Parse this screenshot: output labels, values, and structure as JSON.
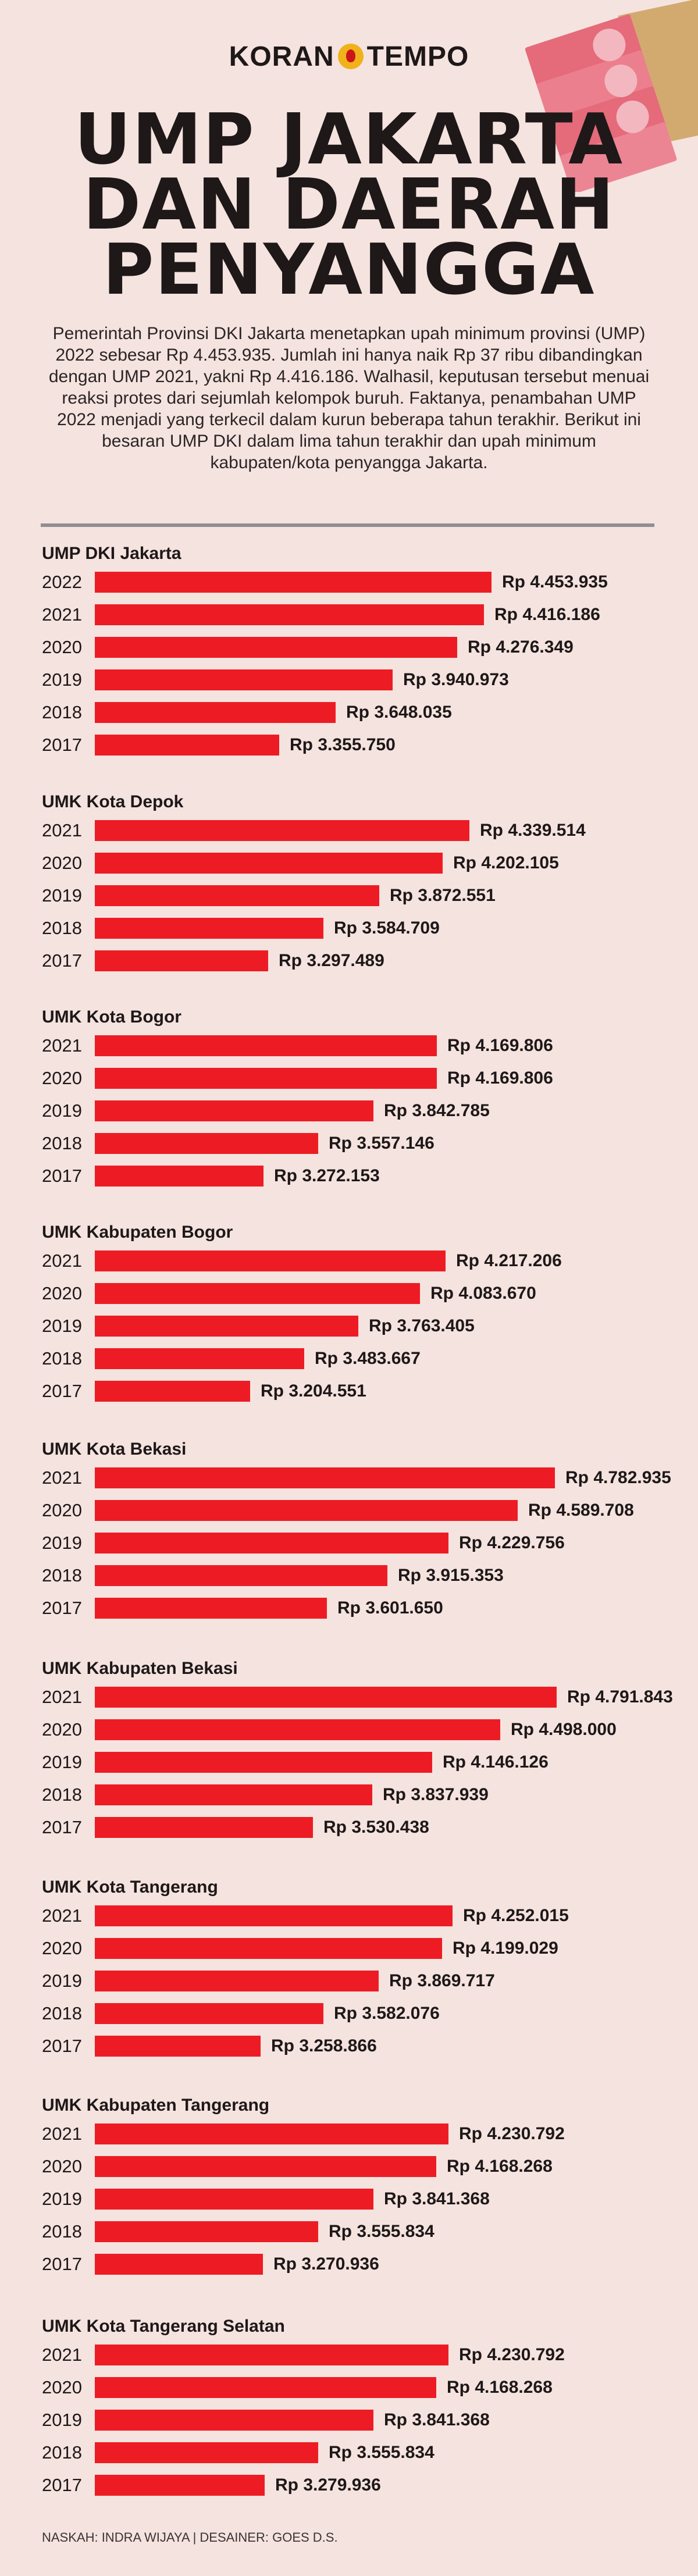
{
  "brand": {
    "left": "KORAN",
    "right": "TEMPO"
  },
  "title_lines": [
    "UMP JAKARTA",
    "DAN DAERAH",
    "PENYANGGA"
  ],
  "intro": "Pemerintah Provinsi DKI Jakarta menetapkan upah minimum provinsi (UMP) 2022 sebesar Rp 4.453.935. Jumlah ini hanya naik Rp 37 ribu dibandingkan dengan UMP 2021, yakni Rp 4.416.186. Walhasil, keputusan tersebut menuai reaksi protes dari sejumlah kelompok buruh. Faktanya, penambahan UMP 2022 menjadi yang terkecil dalam kurun beberapa tahun terakhir. Berikut ini besaran UMP DKI dalam lima tahun terakhir dan upah minimum kabupaten/kota penyangga Jakarta.",
  "credits": "NASKAH: INDRA WIJAYA | DESAINER: GOES D.S.",
  "colors": {
    "bar": "#ed1c24",
    "background": "#f5e3df",
    "text": "#1e1818"
  },
  "chart_data": [
    {
      "type": "bar",
      "orientation": "horizontal",
      "title": "UMP DKI Jakarta",
      "categories": [
        "2022",
        "2021",
        "2020",
        "2019",
        "2018",
        "2017"
      ],
      "values": [
        4453935,
        4416186,
        4276349,
        3940973,
        3648035,
        3355750
      ],
      "labels": [
        "Rp 4.453.935",
        "Rp 4.416.186",
        "Rp 4.276.349",
        "Rp 3.940.973",
        "Rp 3.648.035",
        "Rp 3.355.750"
      ]
    },
    {
      "type": "bar",
      "orientation": "horizontal",
      "title": "UMK Kota Depok",
      "categories": [
        "2021",
        "2020",
        "2019",
        "2018",
        "2017"
      ],
      "values": [
        4339514,
        4202105,
        3872551,
        3584709,
        3297489
      ],
      "labels": [
        "Rp 4.339.514",
        "Rp 4.202.105",
        "Rp 3.872.551",
        "Rp 3.584.709",
        "Rp 3.297.489"
      ]
    },
    {
      "type": "bar",
      "orientation": "horizontal",
      "title": "UMK Kota Bogor",
      "categories": [
        "2021",
        "2020",
        "2019",
        "2018",
        "2017"
      ],
      "values": [
        4169806,
        4169806,
        3842785,
        3557146,
        3272153
      ],
      "labels": [
        "Rp 4.169.806",
        "Rp 4.169.806",
        "Rp 3.842.785",
        "Rp 3.557.146",
        "Rp 3.272.153"
      ]
    },
    {
      "type": "bar",
      "orientation": "horizontal",
      "title": "UMK Kabupaten Bogor",
      "categories": [
        "2021",
        "2020",
        "2019",
        "2018",
        "2017"
      ],
      "values": [
        4217206,
        4083670,
        3763405,
        3483667,
        3204551
      ],
      "labels": [
        "Rp 4.217.206",
        "Rp 4.083.670",
        "Rp 3.763.405",
        "Rp 3.483.667",
        "Rp 3.204.551"
      ]
    },
    {
      "type": "bar",
      "orientation": "horizontal",
      "title": "UMK Kota Bekasi",
      "categories": [
        "2021",
        "2020",
        "2019",
        "2018",
        "2017"
      ],
      "values": [
        4782935,
        4589708,
        4229756,
        3915353,
        3601650
      ],
      "labels": [
        "Rp 4.782.935",
        "Rp 4.589.708",
        "Rp 4.229.756",
        "Rp 3.915.353",
        "Rp 3.601.650"
      ]
    },
    {
      "type": "bar",
      "orientation": "horizontal",
      "title": "UMK Kabupaten Bekasi",
      "categories": [
        "2021",
        "2020",
        "2019",
        "2018",
        "2017"
      ],
      "values": [
        4791843,
        4498000,
        4146126,
        3837939,
        3530438
      ],
      "labels": [
        "Rp 4.791.843",
        "Rp 4.498.000",
        "Rp 4.146.126",
        "Rp 3.837.939",
        "Rp 3.530.438"
      ]
    },
    {
      "type": "bar",
      "orientation": "horizontal",
      "title": "UMK Kota Tangerang",
      "categories": [
        "2021",
        "2020",
        "2019",
        "2018",
        "2017"
      ],
      "values": [
        4252015,
        4199029,
        3869717,
        3582076,
        3258866
      ],
      "labels": [
        "Rp 4.252.015",
        "Rp 4.199.029",
        "Rp 3.869.717",
        "Rp 3.582.076",
        "Rp 3.258.866"
      ]
    },
    {
      "type": "bar",
      "orientation": "horizontal",
      "title": "UMK Kabupaten Tangerang",
      "categories": [
        "2021",
        "2020",
        "2019",
        "2018",
        "2017"
      ],
      "values": [
        4230792,
        4168268,
        3841368,
        3555834,
        3270936
      ],
      "labels": [
        "Rp 4.230.792",
        "Rp 4.168.268",
        "Rp 3.841.368",
        "Rp 3.555.834",
        "Rp 3.270.936"
      ]
    },
    {
      "type": "bar",
      "orientation": "horizontal",
      "title": "UMK Kota Tangerang Selatan",
      "categories": [
        "2021",
        "2020",
        "2019",
        "2018",
        "2017"
      ],
      "values": [
        4230792,
        4168268,
        3841368,
        3555834,
        3279936
      ],
      "labels": [
        "Rp 4.230.792",
        "Rp 4.168.268",
        "Rp 3.841.368",
        "Rp 3.555.834",
        "Rp 3.279.936"
      ]
    }
  ]
}
